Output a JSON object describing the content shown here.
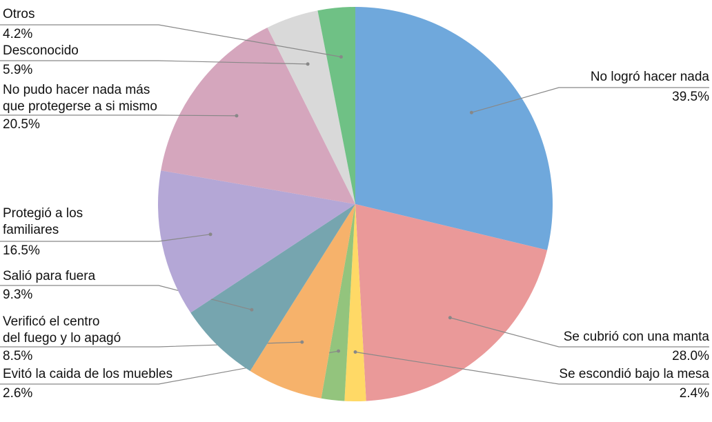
{
  "chart_data": {
    "type": "pie",
    "categories": [
      "No logró hacer nada",
      "Se cubrió con una manta",
      "Se escondió bajo la mesa",
      "Evitó la caida de los muebles",
      "Verificó el centro\ndel fuego y lo apagó",
      "Salió para fuera",
      "Protegió a los\nfamiliares",
      "No pudo hacer nada más\nque protegerse a si mismo",
      "Desconocido",
      "Otros"
    ],
    "values": [
      39.5,
      28.0,
      2.4,
      2.6,
      8.5,
      9.3,
      16.5,
      20.5,
      5.9,
      4.2
    ],
    "value_labels": [
      "39.5%",
      "28.0%",
      "2.4%",
      "2.6%",
      "8.5%",
      "9.3%",
      "16.5%",
      "20.5%",
      "5.9%",
      "4.2%"
    ],
    "colors": [
      "#6fa8dc",
      "#ea9999",
      "#ffd966",
      "#93c47d",
      "#f6b26b",
      "#76a5af",
      "#b4a7d6",
      "#d5a6bd",
      "#d9d9d9",
      "#6fc185"
    ]
  }
}
